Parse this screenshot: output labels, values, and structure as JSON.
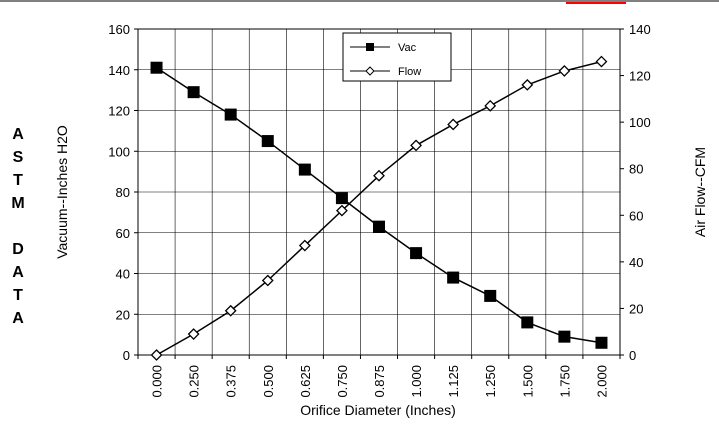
{
  "side_label": [
    "A",
    "S",
    "T",
    "M",
    "",
    "D",
    "A",
    "T",
    "A"
  ],
  "header_fragment": "",
  "chart_data": {
    "type": "line",
    "categories": [
      "0.000",
      "0.250",
      "0.375",
      "0.500",
      "0.625",
      "0.750",
      "0.875",
      "1.000",
      "1.125",
      "1.250",
      "1.500",
      "1.750",
      "2.000"
    ],
    "xlabel": "Orifice Diameter (Inches)",
    "ylabel": "Vacuum--Inches H2O",
    "y2label": "Air Flow--CFM",
    "ylim": [
      0,
      160
    ],
    "y2lim": [
      0,
      140
    ],
    "yticks": [
      0,
      20,
      40,
      60,
      80,
      100,
      120,
      140,
      160
    ],
    "y2ticks": [
      0,
      20,
      40,
      60,
      80,
      100,
      120,
      140
    ],
    "grid": true,
    "legend_position": "top-center",
    "series": [
      {
        "name": "Vac",
        "axis": "left",
        "marker": "filled-square",
        "color": "#000000",
        "values": [
          141,
          129,
          118,
          105,
          91,
          77,
          63,
          50,
          38,
          29,
          16,
          9,
          6
        ]
      },
      {
        "name": "Flow",
        "axis": "right",
        "marker": "open-diamond",
        "color": "#000000",
        "values": [
          0,
          9,
          19,
          32,
          47,
          62,
          77,
          90,
          99,
          107,
          116,
          122,
          126
        ]
      }
    ]
  }
}
